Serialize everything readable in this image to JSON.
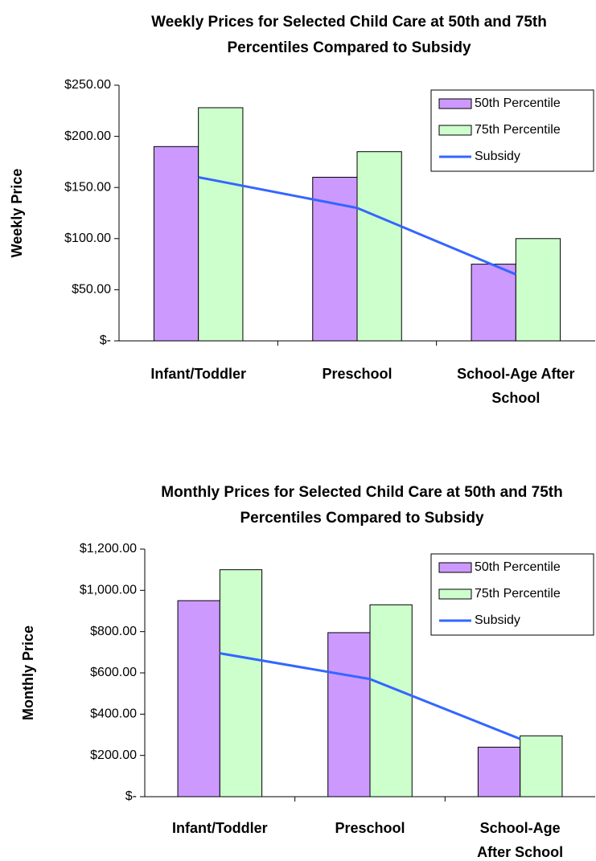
{
  "chart_data": [
    {
      "type": "bar",
      "title": "Weekly Prices for Selected Child Care at 50th and 75th Percentiles Compared to Subsidy",
      "y_label": "Weekly Price",
      "categories": [
        "Infant/Toddler",
        "Preschool",
        "School-Age After School"
      ],
      "series": [
        {
          "name": "50th Percentile",
          "type": "bar",
          "color": "#cc99ff",
          "values": [
            190,
            160,
            75
          ]
        },
        {
          "name": "75th Percentile",
          "type": "bar",
          "color": "#ccffcc",
          "values": [
            228,
            185,
            100
          ]
        },
        {
          "name": "Subsidy",
          "type": "line",
          "color": "#3366ff",
          "values": [
            160,
            130,
            65
          ]
        }
      ],
      "ylim": [
        0,
        250
      ],
      "yticks": [
        {
          "value": 0,
          "label": "$-"
        },
        {
          "value": 50,
          "label": "$50.00"
        },
        {
          "value": 100,
          "label": "$100.00"
        },
        {
          "value": 150,
          "label": "$150.00"
        },
        {
          "value": 200,
          "label": "$200.00"
        },
        {
          "value": 250,
          "label": "$250.00"
        }
      ],
      "grid": false,
      "legend": "upper right"
    },
    {
      "type": "bar",
      "title": "Monthly Prices for Selected Child Care at 50th and 75th Percentiles Compared to Subsidy",
      "y_label": "Monthly Price",
      "categories": [
        "Infant/Toddler",
        "Preschool",
        "School-Age After School"
      ],
      "series": [
        {
          "name": "50th Percentile",
          "type": "bar",
          "color": "#cc99ff",
          "values": [
            950,
            795,
            240
          ]
        },
        {
          "name": "75th Percentile",
          "type": "bar",
          "color": "#ccffcc",
          "values": [
            1100,
            930,
            295
          ]
        },
        {
          "name": "Subsidy",
          "type": "line",
          "color": "#3366ff",
          "values": [
            695,
            570,
            280
          ]
        }
      ],
      "ylim": [
        0,
        1200
      ],
      "yticks": [
        {
          "value": 0,
          "label": "$-"
        },
        {
          "value": 200,
          "label": "$200.00"
        },
        {
          "value": 400,
          "label": "$400.00"
        },
        {
          "value": 600,
          "label": "$600.00"
        },
        {
          "value": 800,
          "label": "$800.00"
        },
        {
          "value": 1000,
          "label": "$1,000.00"
        },
        {
          "value": 1200,
          "label": "$1,200.00"
        }
      ],
      "grid": false,
      "legend": "upper right"
    }
  ]
}
